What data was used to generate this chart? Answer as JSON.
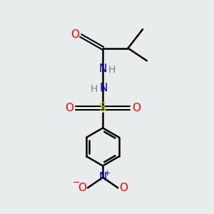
{
  "bg_color": "#e8ecec",
  "atom_colors": {
    "C": "#000000",
    "H": "#808080",
    "N": "#0000cc",
    "O": "#ff0000",
    "S": "#cccc00"
  },
  "figsize": [
    3.0,
    3.0
  ],
  "dpi": 100
}
